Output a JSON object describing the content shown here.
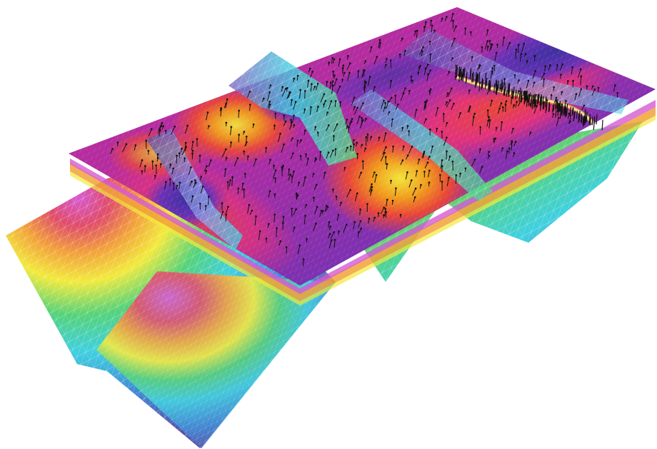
{
  "scene": {
    "background": "#ffffff",
    "colormaps": {
      "rainbow": [
        "#5a4ea8",
        "#3f8ed6",
        "#3fd0e0",
        "#55d27a",
        "#f2ea3c",
        "#f2a23a",
        "#e04c6a",
        "#d65ad2",
        "#7a62c2"
      ],
      "magma": [
        "#3c2ea0",
        "#7a2fb0",
        "#c02c9a",
        "#e0307a",
        "#e84436",
        "#f09a1a",
        "#f2e43a"
      ]
    },
    "mesh_line_color": "#ffffff",
    "arrow_color": "#111111"
  }
}
